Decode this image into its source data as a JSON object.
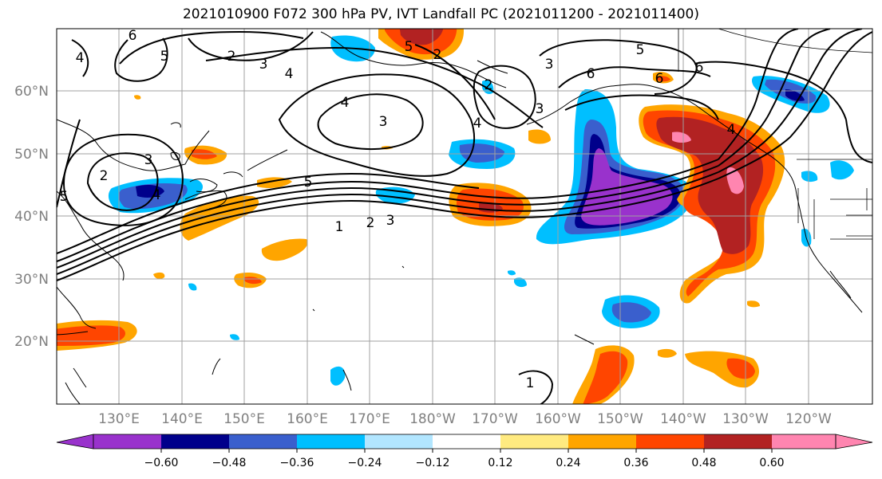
{
  "title": "2021010900 F072 300 hPa PV, IVT Landfall PC (2021011200 - 2021011400)",
  "map": {
    "projection": "PlateCarree",
    "lat_labels": [
      "60°N",
      "50°N",
      "40°N",
      "30°N",
      "20°N"
    ],
    "lon_labels": [
      "130°E",
      "140°E",
      "150°E",
      "160°E",
      "170°E",
      "180°W",
      "170°W",
      "160°W",
      "150°W",
      "140°W",
      "130°W",
      "120°W"
    ],
    "gridlines": true,
    "coastlines": true,
    "contour_labels": [
      "1",
      "2",
      "3",
      "4",
      "5",
      "6"
    ]
  },
  "colorbar": {
    "tick_labels": [
      "−0.60",
      "−0.48",
      "−0.36",
      "−0.24",
      "−0.12",
      "0.12",
      "0.24",
      "0.36",
      "0.48",
      "0.60"
    ],
    "colors": [
      "#9932cc",
      "#00008b",
      "#3a5fcd",
      "#00bfff",
      "#b2e6ff",
      "#ffffff",
      "#ffea80",
      "#ffa500",
      "#ff4500",
      "#b22222",
      "#ff85b0"
    ],
    "extend": "both"
  },
  "colors": {
    "contour": "#000000",
    "coast": "#000000",
    "grid": "#a0a0a0",
    "axis_label": "#808080"
  }
}
